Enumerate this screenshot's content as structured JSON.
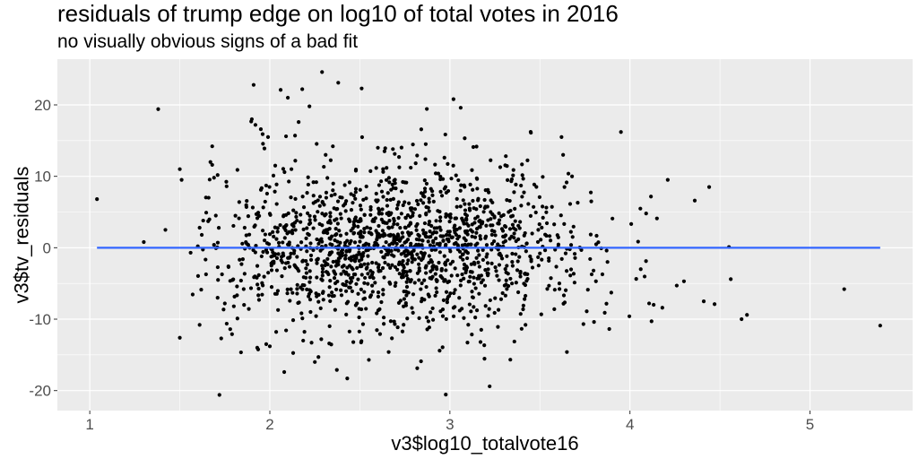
{
  "chart_data": {
    "type": "scatter",
    "title": "residuals of trump edge on log10 of total votes in 2016",
    "subtitle": "no visually obvious signs of a bad fit",
    "xlabel": "v3$log10_totalvote16",
    "ylabel": "v3$tv_residuals",
    "xlim": [
      0.82,
      5.57
    ],
    "ylim": [
      -22.8,
      26.4
    ],
    "xticks": [
      1,
      2,
      3,
      4,
      5
    ],
    "xtick_labels": [
      "1",
      "2",
      "3",
      "4",
      "5"
    ],
    "yticks": [
      -20,
      -10,
      0,
      10,
      20
    ],
    "ytick_labels": [
      "-20",
      "-10",
      "0",
      "10",
      "20"
    ],
    "grid": true,
    "colors": {
      "panel": "#ebebeb",
      "grid": "#ffffff",
      "points": "#000000",
      "fit_line": "#3366ff"
    },
    "fit_line": {
      "x": [
        1.04,
        5.39
      ],
      "y": [
        0,
        0
      ]
    },
    "points": [
      [
        1.04,
        6.8
      ],
      [
        1.3,
        0.8
      ],
      [
        1.38,
        19.4
      ],
      [
        1.42,
        2.5
      ],
      [
        1.5,
        11.0
      ],
      [
        1.51,
        9.5
      ],
      [
        1.5,
        -12.6
      ],
      [
        1.56,
        -0.7
      ],
      [
        1.6,
        0.2
      ],
      [
        1.61,
        2.8
      ],
      [
        1.61,
        -10.8
      ],
      [
        1.63,
        3.8
      ],
      [
        1.66,
        7.0
      ],
      [
        1.67,
        12.0
      ],
      [
        1.68,
        14.2
      ],
      [
        1.68,
        11.6
      ],
      [
        1.69,
        9.8
      ],
      [
        1.69,
        0.4
      ],
      [
        1.7,
        4.5
      ],
      [
        1.71,
        -7.0
      ],
      [
        1.72,
        -20.6
      ],
      [
        1.73,
        -12.7
      ],
      [
        1.75,
        -7.8
      ],
      [
        1.76,
        8.6
      ],
      [
        1.77,
        -2.6
      ],
      [
        1.78,
        -11.4
      ],
      [
        1.79,
        -12.1
      ],
      [
        1.8,
        -8.2
      ],
      [
        1.82,
        10.9
      ],
      [
        1.82,
        -9.9
      ],
      [
        1.83,
        6.4
      ],
      [
        1.84,
        -4.6
      ],
      [
        1.85,
        -1.6
      ],
      [
        1.86,
        2.8
      ],
      [
        1.87,
        5.7
      ],
      [
        1.88,
        0.4
      ],
      [
        1.91,
        22.8
      ],
      [
        1.9,
        18.0
      ],
      [
        1.92,
        17.2
      ],
      [
        1.93,
        -14.0
      ],
      [
        1.94,
        -7.3
      ],
      [
        1.95,
        16.6
      ],
      [
        1.96,
        15.9
      ],
      [
        1.97,
        13.9
      ],
      [
        1.98,
        -13.5
      ],
      [
        1.99,
        15.5
      ],
      [
        2.0,
        -13.8
      ],
      [
        2.01,
        -5.5
      ],
      [
        2.02,
        10.1
      ],
      [
        2.03,
        11.5
      ],
      [
        2.06,
        22.1
      ],
      [
        2.08,
        -17.4
      ],
      [
        2.09,
        15.6
      ],
      [
        2.1,
        21.0
      ],
      [
        2.12,
        11.0
      ],
      [
        2.14,
        15.7
      ],
      [
        2.16,
        17.6
      ],
      [
        2.18,
        22.2
      ],
      [
        2.2,
        -4.2
      ],
      [
        2.22,
        19.8
      ],
      [
        2.25,
        -16.0
      ],
      [
        2.27,
        -15.3
      ],
      [
        2.29,
        24.6
      ],
      [
        2.31,
        13.0
      ],
      [
        2.33,
        -13.4
      ],
      [
        2.35,
        14.2
      ],
      [
        2.38,
        23.1
      ],
      [
        2.43,
        -18.3
      ],
      [
        2.51,
        22.3
      ],
      [
        2.55,
        -15.7
      ],
      [
        2.6,
        14.0
      ],
      [
        2.66,
        -14.6
      ],
      [
        3.02,
        20.8
      ],
      [
        3.06,
        19.6
      ],
      [
        3.13,
        14.1
      ],
      [
        3.17,
        -13.2
      ],
      [
        3.27,
        -8.7
      ],
      [
        3.42,
        -10.8
      ],
      [
        3.45,
        16.1
      ],
      [
        3.58,
        -8.6
      ],
      [
        3.62,
        15.5
      ],
      [
        3.65,
        -14.6
      ],
      [
        3.71,
        6.3
      ],
      [
        3.76,
        -8.9
      ],
      [
        3.86,
        -9.1
      ],
      [
        3.95,
        16.2
      ],
      [
        4.06,
        -3.0
      ],
      [
        4.09,
        4.8
      ],
      [
        4.12,
        -10.3
      ],
      [
        4.15,
        4.1
      ],
      [
        4.18,
        -8.4
      ],
      [
        4.21,
        9.5
      ],
      [
        4.26,
        -5.3
      ],
      [
        4.3,
        -4.7
      ],
      [
        4.36,
        6.6
      ],
      [
        4.41,
        -7.5
      ],
      [
        4.44,
        8.5
      ],
      [
        4.47,
        -7.9
      ],
      [
        4.55,
        0.1
      ],
      [
        4.56,
        -4.4
      ],
      [
        4.62,
        -10.0
      ],
      [
        4.65,
        -9.4
      ],
      [
        5.19,
        -5.8
      ],
      [
        5.39,
        -10.9
      ]
    ],
    "cloud_stats": {
      "count": 1500,
      "x_mean": 2.72,
      "x_sd": 0.5,
      "y_sd": 5.6,
      "y_clip": 24
    }
  }
}
